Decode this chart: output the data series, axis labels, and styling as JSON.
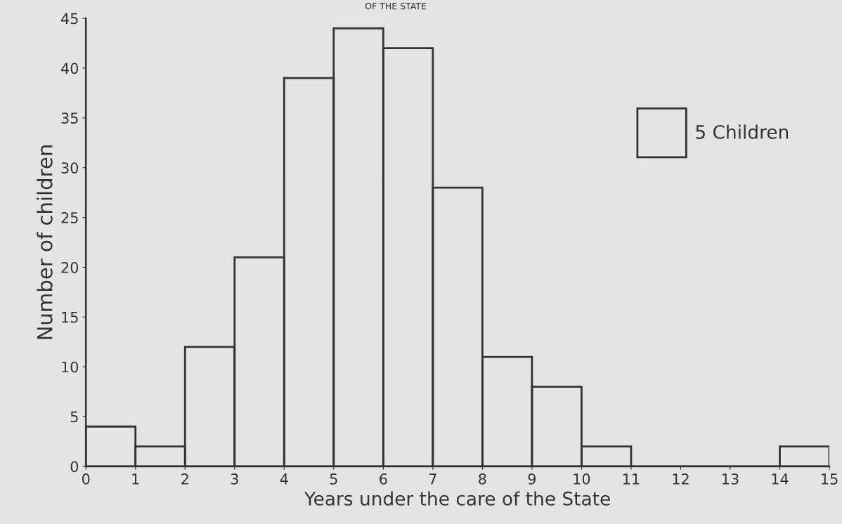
{
  "chart_data": {
    "type": "histogram",
    "title": "OF THE STATE",
    "xlabel": "Years under the care of the State",
    "ylabel": "Number of children",
    "bins": [
      0,
      1,
      2,
      3,
      4,
      5,
      6,
      7,
      8,
      9,
      10,
      11,
      12,
      13,
      14,
      15
    ],
    "values": [
      4,
      2,
      12,
      21,
      39,
      44,
      42,
      28,
      11,
      8,
      2,
      0,
      0,
      0,
      2
    ],
    "color": "#333333",
    "xlim": [
      0,
      15
    ],
    "ylim": [
      0,
      45
    ],
    "xticks": [
      0,
      1,
      2,
      3,
      4,
      5,
      6,
      7,
      8,
      9,
      10,
      11,
      12,
      13,
      14,
      15
    ],
    "yticks": [
      0,
      5,
      10,
      15,
      20,
      25,
      30,
      35,
      40,
      45
    ],
    "annotations": [
      "5 Children"
    ],
    "grid": false
  }
}
